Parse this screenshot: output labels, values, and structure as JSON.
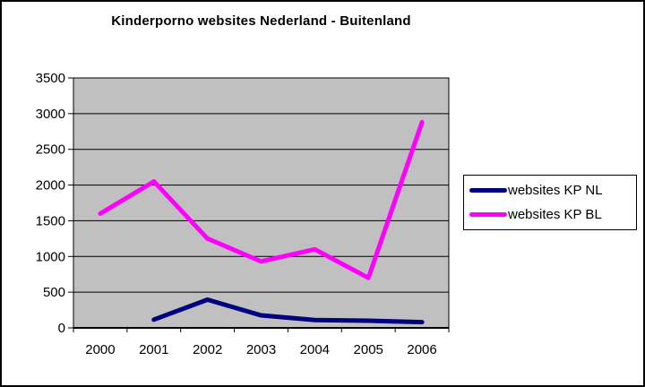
{
  "title": "Kinderporno websites Nederland - Buitenland",
  "colors": {
    "chart_background": "#ffffff",
    "plot_background": "#c0c0c0",
    "gridline": "#000000",
    "axis": "#000000",
    "series_nl": "#000080",
    "series_bl": "#ff00ff"
  },
  "legend": {
    "items": [
      {
        "label": "websites KP NL",
        "color": "#000080"
      },
      {
        "label": "websites KP BL",
        "color": "#ff00ff"
      }
    ]
  },
  "chart_data": {
    "type": "line",
    "title": "Kinderporno websites Nederland - Buitenland",
    "categories": [
      "2000",
      "2001",
      "2002",
      "2003",
      "2004",
      "2005",
      "2006"
    ],
    "series": [
      {
        "name": "websites KP NL",
        "color": "#000080",
        "values": [
          null,
          115,
          395,
          175,
          110,
          100,
          80
        ]
      },
      {
        "name": "websites KP BL",
        "color": "#ff00ff",
        "values": [
          1600,
          2050,
          1250,
          930,
          1100,
          700,
          2880
        ]
      }
    ],
    "xlabel": "",
    "ylabel": "",
    "ylim": [
      0,
      3500
    ],
    "ytick_step": 500,
    "yticks": [
      0,
      500,
      1000,
      1500,
      2000,
      2500,
      3000,
      3500
    ],
    "grid": true,
    "legend_position": "right",
    "plot_background": "#c0c0c0"
  }
}
